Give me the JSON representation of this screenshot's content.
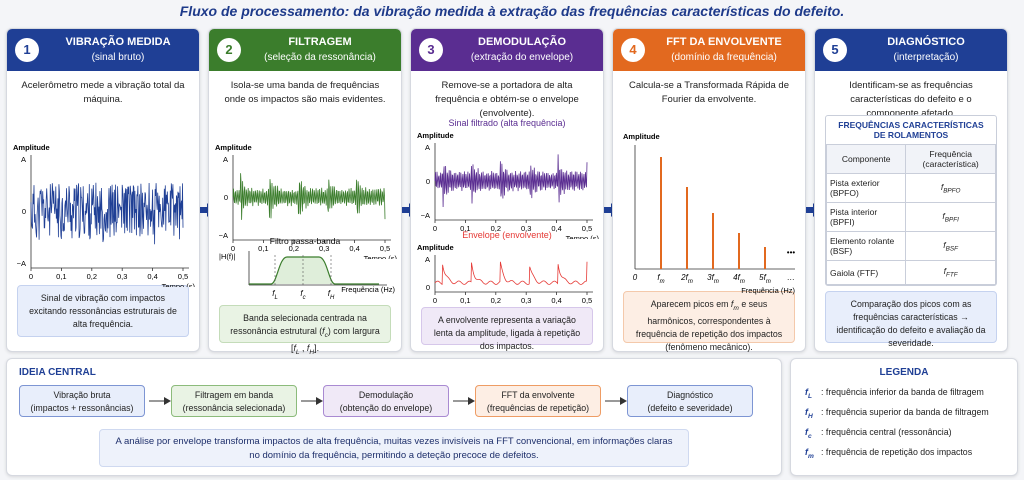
{
  "title": "Fluxo de processamento: da vibração medida à extração das frequências características do defeito.",
  "steps": [
    {
      "number": "1",
      "title": "VIBRAÇÃO MEDIDA",
      "subtitle": "(sinal bruto)",
      "description": "Acelerômetro mede a vibração total da máquina.",
      "note": [
        "Sinal de vibração com impactos excitando ressonâncias estruturais de alta frequência."
      ]
    },
    {
      "number": "2",
      "title": "FILTRAGEM",
      "subtitle": "(seleção da ressonância)",
      "description": "Isola-se uma banda de frequências onde os impactos são mais evidentes.",
      "note": [
        "Banda selecionada centrada na ressonância estrutural (",
        {
          "base": "f",
          "sub": "c"
        },
        ") com largura [",
        {
          "base": "f",
          "sub": "L"
        },
        " , ",
        {
          "base": "f",
          "sub": "H"
        },
        "]."
      ]
    },
    {
      "number": "3",
      "title": "DEMODULAÇÃO",
      "subtitle": "(extração do envelope)",
      "description": "Remove-se a portadora de alta frequência e obtém-se o envelope (envolvente).",
      "note": [
        "A envolvente representa a variação lenta da amplitude, ligada à repetição dos impactos."
      ]
    },
    {
      "number": "4",
      "title": "FFT DA ENVOLVENTE",
      "subtitle": "(domínio da frequência)",
      "description": "Calcula-se a Transformada Rápida de Fourier da envolvente.",
      "note": [
        "Aparecem picos em ",
        {
          "base": "f",
          "sub": "m"
        },
        " e seus harmônicos, correspondentes à frequência de repetição dos impactos (fenômeno mecânico)."
      ]
    },
    {
      "number": "5",
      "title": "DIAGNÓSTICO",
      "subtitle": "(interpretação)",
      "description": "Identificam-se as frequências características do defeito e o componente afetado.",
      "note": [
        "Comparação dos picos com as frequências características → identificação do defeito e avaliação da severidade."
      ]
    }
  ],
  "plots": {
    "raw": {
      "y_label": "Amplitude",
      "yticks": [
        "A",
        "0",
        "−A"
      ],
      "xticks": [
        "0",
        "0,1",
        "0,2",
        "0,3",
        "0,4",
        "0,5"
      ],
      "x_label": "Tempo (s)"
    },
    "filtered": {
      "y_label": "Amplitude",
      "yticks": [
        "A",
        "0",
        "−A"
      ],
      "xticks": [
        "0",
        "0,1",
        "0,2",
        "0,3",
        "0,4",
        "0,5"
      ],
      "x_label": "Tempo (s)"
    },
    "filter": {
      "title": "Filtro passa-banda",
      "y_label": "|H(f)|",
      "xticks": [
        {
          "base": "f",
          "sub": "L"
        },
        {
          "base": "f",
          "sub": "c"
        },
        {
          "base": "f",
          "sub": "H"
        }
      ],
      "x_label": "Frequência (Hz)"
    },
    "demod": {
      "label": "Sinal filtrado (alta frequência)",
      "y_label": "Amplitude",
      "yticks": [
        "A",
        "0",
        "−A"
      ],
      "xticks": [
        "0",
        "0,1",
        "0,2",
        "0,3",
        "0,4",
        "0,5"
      ],
      "x_label": "Tempo (s)"
    },
    "envelope": {
      "label": "Envelope (envolvente)",
      "y_label": "Amplitude",
      "yticks": [
        "A",
        "0"
      ],
      "xticks": [
        "0",
        "0,1",
        "0,2",
        "0,3",
        "0,4",
        "0,5"
      ]
    },
    "spectrum": {
      "y_label": "Amplitude",
      "xticks": [
        {
          "base": "0"
        },
        {
          "base": "f",
          "sub": "m"
        },
        {
          "base": "2f",
          "sub": "m"
        },
        {
          "base": "3f",
          "sub": "m"
        },
        {
          "base": "4f",
          "sub": "m"
        },
        {
          "base": "5f",
          "sub": "m"
        },
        {
          "base": "…"
        }
      ],
      "dots": "•••",
      "x_label": "Frequência (Hz)"
    }
  },
  "table": {
    "title": "FREQUÊNCIAS CARACTERÍSTICAS DE ROLAMENTOS",
    "headers": [
      "Componente",
      "Frequência (característica)"
    ],
    "rows": [
      [
        "Pista exterior (BPFO)",
        {
          "base": "f",
          "sub": "BPFO"
        }
      ],
      [
        "Pista interior (BPFI)",
        {
          "base": "f",
          "sub": "BPFI"
        }
      ],
      [
        "Elemento rolante (BSF)",
        {
          "base": "f",
          "sub": "BSF"
        }
      ],
      [
        "Gaiola (FTF)",
        {
          "base": "f",
          "sub": "FTF"
        }
      ]
    ]
  },
  "central": {
    "title": "IDEIA CENTRAL",
    "flow": [
      [
        "Vibração bruta",
        "(impactos + ressonâncias)"
      ],
      [
        "Filtragem em banda",
        "(ressonância selecionada)"
      ],
      [
        "Demodulação",
        "(obtenção do envelope)"
      ],
      [
        "FFT da envolvente",
        "(frequências de repetição)"
      ],
      [
        "Diagnóstico",
        "(defeito e severidade)"
      ]
    ],
    "summary": "A análise por envelope transforma impactos de alta frequência, muitas vezes invisíveis na FFT convencional, em informações claras no domínio da frequência, permitindo a deteção precoce de defeitos."
  },
  "legend": {
    "title": "LEGENDA",
    "items": [
      {
        "base": "f",
        "sub": "L",
        "text": ": frequência inferior da banda de filtragem"
      },
      {
        "base": "f",
        "sub": "H",
        "text": ": frequência superior da banda de filtragem"
      },
      {
        "base": "f",
        "sub": "c",
        "text": ": frequência central (ressonância)"
      },
      {
        "base": "f",
        "sub": "m",
        "text": ": frequência de repetição dos impactos"
      }
    ]
  }
}
